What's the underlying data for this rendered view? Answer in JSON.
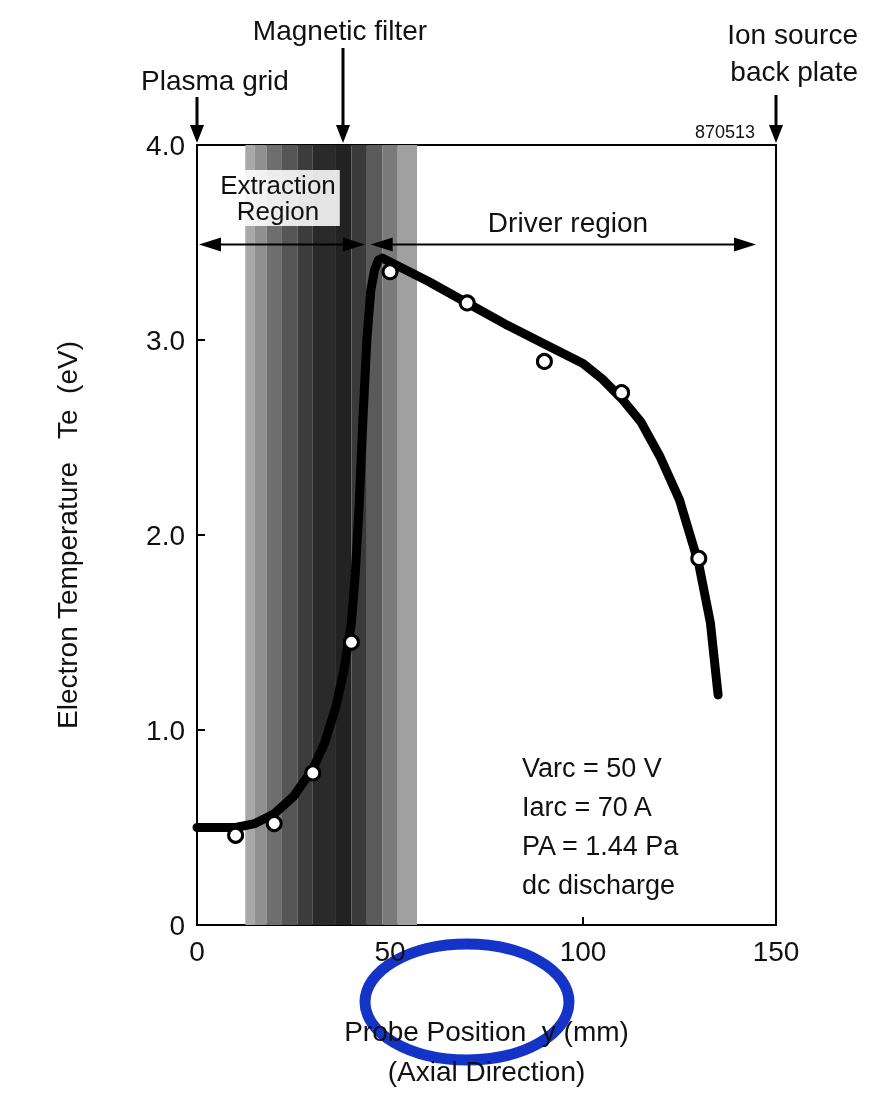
{
  "chart_data": {
    "type": "line",
    "xlabel": "Probe Position  y (mm)\n(Axial Direction)",
    "ylabel": "Electron Temperature   Te  (eV)",
    "xlim": [
      0,
      150
    ],
    "xticks": [
      0,
      50,
      100,
      150
    ],
    "ylim": [
      0,
      4
    ],
    "yticks": [
      0,
      {
        "value": 1,
        "label": "1.0"
      },
      {
        "value": 2,
        "label": "2.0"
      },
      {
        "value": 3,
        "label": "3.0"
      },
      {
        "value": 4,
        "label": "4.0"
      }
    ],
    "grid": false,
    "series": [
      {
        "color": "#000000",
        "marker": "none",
        "line_style": "solid",
        "x": [
          0,
          10,
          15,
          20,
          25,
          30,
          33,
          36,
          38,
          40,
          41,
          42,
          43,
          44,
          45,
          46,
          47,
          48,
          50,
          60,
          70,
          80,
          90,
          100,
          105,
          110,
          115,
          120,
          125,
          130,
          133,
          135
        ],
        "values": [
          0.5,
          0.5,
          0.52,
          0.57,
          0.66,
          0.8,
          0.93,
          1.12,
          1.3,
          1.55,
          1.8,
          2.15,
          2.6,
          3.0,
          3.25,
          3.36,
          3.41,
          3.42,
          3.4,
          3.3,
          3.19,
          3.08,
          2.98,
          2.88,
          2.8,
          2.7,
          2.58,
          2.4,
          2.18,
          1.85,
          1.55,
          1.18
        ]
      },
      {
        "type": "scatter",
        "color": "#000000",
        "marker": "circle",
        "x": [
          10,
          20,
          30,
          40,
          50,
          70,
          90,
          110,
          130
        ],
        "values": [
          0.46,
          0.52,
          0.78,
          1.45,
          3.35,
          3.19,
          2.89,
          2.73,
          1.88
        ]
      }
    ],
    "bands": [
      {
        "axis": "x",
        "from": 12.5,
        "to": 15,
        "color": "#a8a8a8"
      },
      {
        "axis": "x",
        "from": 15,
        "to": 18,
        "color": "#909090"
      },
      {
        "axis": "x",
        "from": 18,
        "to": 22,
        "color": "#6e6e6e"
      },
      {
        "axis": "x",
        "from": 22,
        "to": 26,
        "color": "#555555"
      },
      {
        "axis": "x",
        "from": 26,
        "to": 30,
        "color": "#3c3c3c"
      },
      {
        "axis": "x",
        "from": 30,
        "to": 36,
        "color": "#2a2a2a"
      },
      {
        "axis": "x",
        "from": 36,
        "to": 40,
        "color": "#222222"
      },
      {
        "axis": "x",
        "from": 40,
        "to": 44,
        "color": "#3a3a3a"
      },
      {
        "axis": "x",
        "from": 44,
        "to": 48,
        "color": "#5a5a5a"
      },
      {
        "axis": "x",
        "from": 48,
        "to": 52,
        "color": "#7a7a7a"
      },
      {
        "axis": "x",
        "from": 52,
        "to": 57,
        "color": "#a0a0a0"
      }
    ],
    "annotations": [
      "Plasma grid",
      "Magnetic filter",
      "Ion source\nback plate",
      "870513",
      "Extraction\nRegion",
      "Driver region",
      "Varc = 50 V\nIarc = 70 A\nPA = 1.44 Pa\ndc discharge"
    ]
  }
}
